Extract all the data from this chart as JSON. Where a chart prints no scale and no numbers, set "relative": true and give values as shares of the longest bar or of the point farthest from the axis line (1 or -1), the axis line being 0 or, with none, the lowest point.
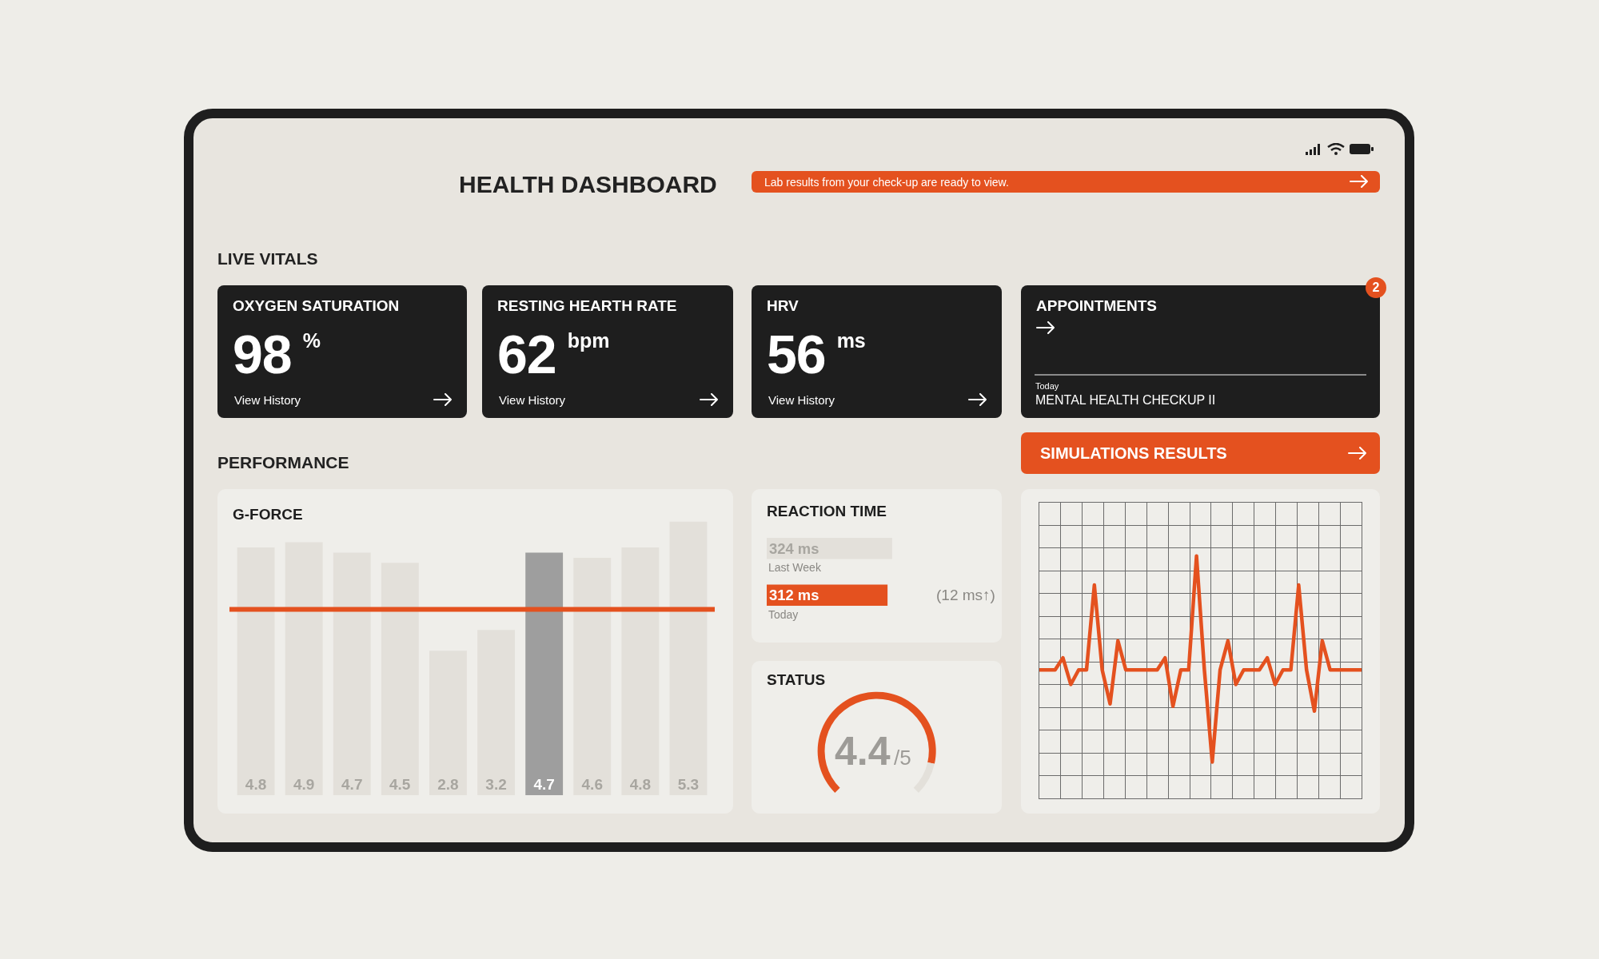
{
  "chart_data": [
    {
      "type": "other",
      "title": "HEALTH DASHBOARD",
      "annotations": [
        "Lab results from your check-up are ready to view.",
        "LIVE VITALS",
        "PERFORMANCE",
        "SIMULATIONS RESULTS"
      ]
    },
    {
      "type": "other",
      "title": "OXYGEN SATURATION",
      "annotations": [
        "98",
        "%",
        "View History"
      ]
    },
    {
      "type": "other",
      "title": "RESTING HEARTH RATE",
      "annotations": [
        "62",
        "bpm",
        "View History"
      ]
    },
    {
      "type": "other",
      "title": "HRV",
      "annotations": [
        "56",
        "ms",
        "View History"
      ]
    },
    {
      "type": "other",
      "title": "APPOINTMENTS",
      "annotations": [
        "2",
        "Today",
        "MENTAL HEALTH CHECKUP II"
      ]
    },
    {
      "type": "bar",
      "title": "G-FORCE",
      "categories": [
        null,
        null,
        null,
        null,
        null,
        null,
        null,
        null,
        null,
        null
      ],
      "values": [
        4.8,
        4.9,
        4.7,
        4.5,
        2.8,
        3.2,
        4.7,
        4.6,
        4.8,
        5.3
      ],
      "colors": [
        "#e3e0da",
        "#e3e0da",
        "#e3e0da",
        "#e3e0da",
        "#e3e0da",
        "#e3e0da",
        "#9e9e9e",
        "#e3e0da",
        "#e3e0da",
        "#e3e0da"
      ],
      "data_labels": true,
      "ref_lines": [
        {
          "axis": "y",
          "value": 3.6,
          "color": "#e4511f"
        }
      ]
    },
    {
      "type": "bar",
      "orientation": "horizontal",
      "title": "REACTION TIME",
      "categories": [
        "Last Week",
        "Today"
      ],
      "values": [
        324,
        312
      ],
      "value_labels": [
        "324 ms",
        "312 ms"
      ],
      "colors": [
        "#e3e0da",
        "#e4511f"
      ],
      "annotations": [
        "(12 ms↑)"
      ]
    },
    {
      "type": "donut",
      "title": "STATUS",
      "categories": [
        null,
        null
      ],
      "values": [
        88,
        12
      ],
      "colors": [
        "#e4511f",
        "#e3e0da"
      ],
      "annotations": [
        "4.4",
        "/5"
      ]
    },
    {
      "type": "line",
      "relative": true,
      "grid": true,
      "categories": [
        null,
        null,
        null,
        null,
        null,
        null,
        null,
        null,
        null,
        null,
        null,
        null,
        null,
        null,
        null,
        null,
        null,
        null,
        null,
        null,
        null,
        null,
        null,
        null,
        null,
        null,
        null,
        null,
        null,
        null,
        null,
        null,
        null,
        null,
        null,
        null,
        null,
        null,
        null,
        null,
        null,
        null
      ],
      "series": [
        {
          "color": "#e4511f",
          "values": [
            0.53,
            0.53,
            0.53,
            0.58,
            0.47,
            0.53,
            0.53,
            0.88,
            0.53,
            0.39,
            0.65,
            0.53,
            0.53,
            0.53,
            0.53,
            0.53,
            0.58,
            0.38,
            0.53,
            0.53,
            1,
            0.53,
            0.15,
            0.53,
            0.65,
            0.47,
            0.53,
            0.53,
            0.53,
            0.58,
            0.47,
            0.53,
            0.53,
            0.88,
            0.53,
            0.36,
            0.65,
            0.53,
            0.53,
            0.53,
            0.53,
            0.53
          ]
        }
      ]
    }
  ]
}
